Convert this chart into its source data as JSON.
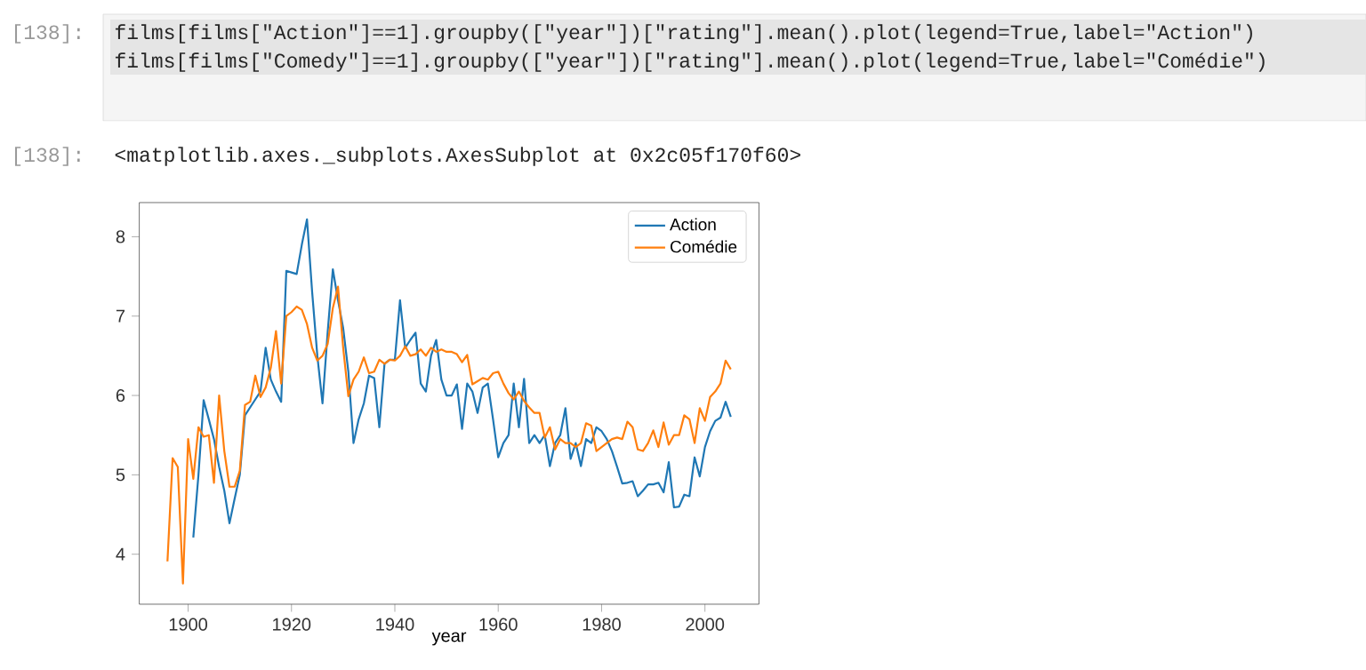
{
  "chart_data": {
    "type": "line",
    "xlabel": "year",
    "annotations": [
      "[138]:",
      "films[films[\"Action\"]==1].groupby([\"year\"])[\"rating\"].mean().plot(legend=True,label=\"Action\")",
      "films[films[\"Comedy\"]==1].groupby([\"year\"])[\"rating\"].mean().plot(legend=True,label=\"Comédie\")",
      "[138]:",
      "<matplotlib.axes._subplots.AxesSubplot at 0x2c05f170f60>"
    ],
    "xlim": [
      1890.55,
      2010.45
    ],
    "ylim": [
      3.37,
      8.43
    ],
    "xticks": [
      1900,
      1920,
      1940,
      1960,
      1980,
      2000
    ],
    "yticks": [
      4,
      5,
      6,
      7,
      8
    ],
    "legend": "top right",
    "marker": "none",
    "line_style": "solid",
    "grid": false,
    "series": [
      {
        "name": "Action",
        "color": "#1f77b4",
        "x": [
          1901,
          1902,
          1903,
          1904,
          1905,
          1906,
          1907,
          1908,
          1909,
          1910,
          1911,
          1912,
          1913,
          1914,
          1915,
          1916,
          1917,
          1918,
          1919,
          1920,
          1921,
          1922,
          1923,
          1924,
          1925,
          1926,
          1927,
          1928,
          1929,
          1930,
          1931,
          1932,
          1933,
          1934,
          1935,
          1936,
          1937,
          1938,
          1939,
          1940,
          1941,
          1942,
          1943,
          1944,
          1945,
          1946,
          1947,
          1948,
          1949,
          1950,
          1951,
          1952,
          1953,
          1954,
          1955,
          1956,
          1957,
          1958,
          1959,
          1960,
          1961,
          1962,
          1963,
          1964,
          1965,
          1966,
          1967,
          1968,
          1969,
          1970,
          1971,
          1972,
          1973,
          1974,
          1975,
          1976,
          1977,
          1978,
          1979,
          1980,
          1981,
          1982,
          1983,
          1984,
          1985,
          1986,
          1987,
          1988,
          1989,
          1990,
          1991,
          1992,
          1993,
          1994,
          1995,
          1996,
          1997,
          1998,
          1999,
          2000,
          2001,
          2002,
          2003,
          2004,
          2005
        ],
        "values": [
          4.21,
          5.0,
          5.94,
          5.7,
          5.45,
          5.1,
          4.8,
          4.39,
          4.7,
          5.0,
          5.75,
          5.85,
          5.95,
          6.05,
          6.6,
          6.2,
          6.05,
          5.92,
          7.57,
          7.55,
          7.53,
          7.9,
          8.22,
          7.3,
          6.5,
          5.9,
          6.8,
          7.59,
          7.2,
          6.85,
          6.3,
          5.4,
          5.7,
          5.9,
          6.25,
          6.22,
          5.6,
          6.4,
          6.45,
          6.45,
          7.2,
          6.6,
          6.7,
          6.79,
          6.15,
          6.05,
          6.5,
          6.7,
          6.2,
          6.0,
          6.0,
          6.14,
          5.58,
          6.15,
          6.05,
          5.78,
          6.1,
          6.15,
          5.7,
          5.22,
          5.4,
          5.5,
          6.15,
          5.6,
          6.21,
          5.4,
          5.5,
          5.4,
          5.5,
          5.11,
          5.4,
          5.5,
          5.84,
          5.2,
          5.4,
          5.11,
          5.45,
          5.4,
          5.6,
          5.55,
          5.45,
          5.3,
          5.1,
          4.89,
          4.9,
          4.92,
          4.73,
          4.8,
          4.88,
          4.88,
          4.9,
          4.78,
          5.16,
          4.59,
          4.6,
          4.75,
          4.73,
          5.22,
          4.98,
          5.35,
          5.55,
          5.68,
          5.72,
          5.92,
          5.73
        ]
      },
      {
        "name": "Comédie",
        "color": "#ff7f0e",
        "x": [
          1896,
          1897,
          1898,
          1899,
          1900,
          1901,
          1902,
          1903,
          1904,
          1905,
          1906,
          1907,
          1908,
          1909,
          1910,
          1911,
          1912,
          1913,
          1914,
          1915,
          1916,
          1917,
          1918,
          1919,
          1920,
          1921,
          1922,
          1923,
          1924,
          1925,
          1926,
          1927,
          1928,
          1929,
          1930,
          1931,
          1932,
          1933,
          1934,
          1935,
          1936,
          1937,
          1938,
          1939,
          1940,
          1941,
          1942,
          1943,
          1944,
          1945,
          1946,
          1947,
          1948,
          1949,
          1950,
          1951,
          1952,
          1953,
          1954,
          1955,
          1956,
          1957,
          1958,
          1959,
          1960,
          1961,
          1962,
          1963,
          1964,
          1965,
          1966,
          1967,
          1968,
          1969,
          1970,
          1971,
          1972,
          1973,
          1974,
          1975,
          1976,
          1977,
          1978,
          1979,
          1980,
          1981,
          1982,
          1983,
          1984,
          1985,
          1986,
          1987,
          1988,
          1989,
          1990,
          1991,
          1992,
          1993,
          1994,
          1995,
          1996,
          1997,
          1998,
          1999,
          2000,
          2001,
          2002,
          2003,
          2004,
          2005
        ],
        "values": [
          3.91,
          5.21,
          5.1,
          3.63,
          5.45,
          4.95,
          5.6,
          5.48,
          5.5,
          4.9,
          6.0,
          5.3,
          4.85,
          4.85,
          5.05,
          5.88,
          5.92,
          6.25,
          5.98,
          6.1,
          6.35,
          6.81,
          6.15,
          7.0,
          7.05,
          7.12,
          7.08,
          6.9,
          6.6,
          6.44,
          6.5,
          6.65,
          7.1,
          7.37,
          6.6,
          5.99,
          6.2,
          6.3,
          6.48,
          6.28,
          6.3,
          6.45,
          6.4,
          6.45,
          6.44,
          6.5,
          6.62,
          6.5,
          6.52,
          6.58,
          6.5,
          6.6,
          6.55,
          6.58,
          6.55,
          6.55,
          6.52,
          6.42,
          6.51,
          6.14,
          6.18,
          6.22,
          6.2,
          6.28,
          6.3,
          6.15,
          6.03,
          5.95,
          6.05,
          5.93,
          5.85,
          5.78,
          5.78,
          5.47,
          5.6,
          5.32,
          5.45,
          5.4,
          5.4,
          5.35,
          5.4,
          5.65,
          5.62,
          5.3,
          5.35,
          5.4,
          5.45,
          5.47,
          5.45,
          5.67,
          5.6,
          5.32,
          5.3,
          5.4,
          5.56,
          5.35,
          5.66,
          5.38,
          5.5,
          5.5,
          5.75,
          5.7,
          5.4,
          5.84,
          5.68,
          5.98,
          6.05,
          6.15,
          6.44,
          6.33
        ]
      }
    ]
  }
}
